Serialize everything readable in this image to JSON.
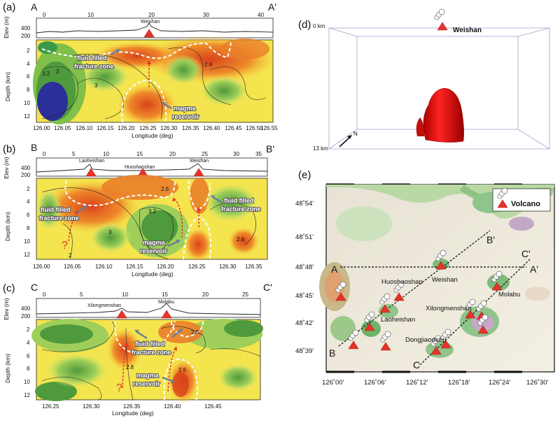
{
  "panels": {
    "a": {
      "label": "(a)",
      "start": "A",
      "end": "A'",
      "dist_ticks": [
        "0",
        "10",
        "20",
        "30",
        "40"
      ],
      "elev_label": "Elev (m)",
      "elev_ticks": [
        "400",
        "200"
      ],
      "depth_label": "Depth (km)",
      "depth_ticks": [
        "2",
        "4",
        "6",
        "8",
        "10",
        "12"
      ],
      "x_label": "Longitude (deg)",
      "lon_ticks": [
        "126.00",
        "126.05",
        "126.10",
        "126.15",
        "126.20",
        "126.25",
        "126.30",
        "126.35",
        "126.40",
        "126.45",
        "126.50",
        "126.55"
      ],
      "volcanoes": [
        "Weishan"
      ],
      "annotations": [
        "fluid filled",
        "fracture zone",
        "magma",
        "reservoir"
      ],
      "contours": [
        "3",
        "3",
        "2.8",
        "3.2"
      ]
    },
    "b": {
      "label": "(b)",
      "start": "B",
      "end": "B'",
      "dist_ticks": [
        "0",
        "5",
        "10",
        "15",
        "20",
        "25",
        "30",
        "35"
      ],
      "elev_label": "Elev (m)",
      "elev_ticks": [
        "400",
        "200"
      ],
      "depth_label": "Depth (km)",
      "depth_ticks": [
        "2",
        "4",
        "6",
        "8",
        "10",
        "12"
      ],
      "x_label": "Longitude (deg)",
      "lon_ticks": [
        "126.00",
        "126.05",
        "126.10",
        "126.15",
        "126.20",
        "126.25",
        "126.30",
        "126.35"
      ],
      "volcanoes": [
        "Laoheishan",
        "Huoshaoshan",
        "Weishan"
      ],
      "annotations": [
        "fluid filled",
        "fracture zone",
        "fluid filled",
        "fracture zone",
        "magma",
        "reservoir"
      ],
      "contours": [
        "2.6",
        "3.2",
        "3",
        "2.6",
        "2"
      ],
      "question": "?"
    },
    "c": {
      "label": "(c)",
      "start": "C",
      "end": "C'",
      "dist_ticks": [
        "0",
        "5",
        "10",
        "15",
        "20",
        "25"
      ],
      "elev_label": "Elev (m)",
      "elev_ticks": [
        "400",
        "200"
      ],
      "depth_label": "Depth (km)",
      "depth_ticks": [
        "2",
        "4",
        "6",
        "8",
        "10",
        "12"
      ],
      "x_label": "Longitude (deg)",
      "lon_ticks": [
        "126.25",
        "126.30",
        "126.35",
        "126.40",
        "126.45"
      ],
      "volcanoes": [
        "Xilongmenshan",
        "Molabu"
      ],
      "annotations": [
        "fluid filled",
        "fracture zone",
        "magma",
        "reservoir"
      ],
      "contours": [
        "2.6",
        "2.8",
        "2.6"
      ],
      "question": "?"
    },
    "d": {
      "label": "(d)",
      "top_label": "0 km",
      "bottom_label": "13 km",
      "volcano": "Weishan",
      "axis": "N"
    },
    "e": {
      "label": "(e)",
      "legend": "Volcano",
      "lat_ticks": [
        "48˚54'",
        "48˚51'",
        "48˚48'",
        "48˚45'",
        "48˚42'",
        "48˚39'"
      ],
      "lon_ticks": [
        "126˚00'",
        "126˚06'",
        "126˚12'",
        "126˚18'",
        "126˚24'",
        "126˚30'"
      ],
      "profile_ends": [
        "A",
        "A'",
        "B",
        "B'",
        "C",
        "C'"
      ],
      "volcano_labels": [
        "Huoshaoshan",
        "Weishan",
        "Laoheishan",
        "Molabu",
        "Xilongmenshan",
        "Dongjiaodebu"
      ]
    }
  },
  "colors": {
    "red": "#e8332a",
    "yellow": "#f5e85a",
    "orange": "#ee8a2a",
    "green": "#7fbf4a",
    "blue": "#2a2f9a"
  }
}
